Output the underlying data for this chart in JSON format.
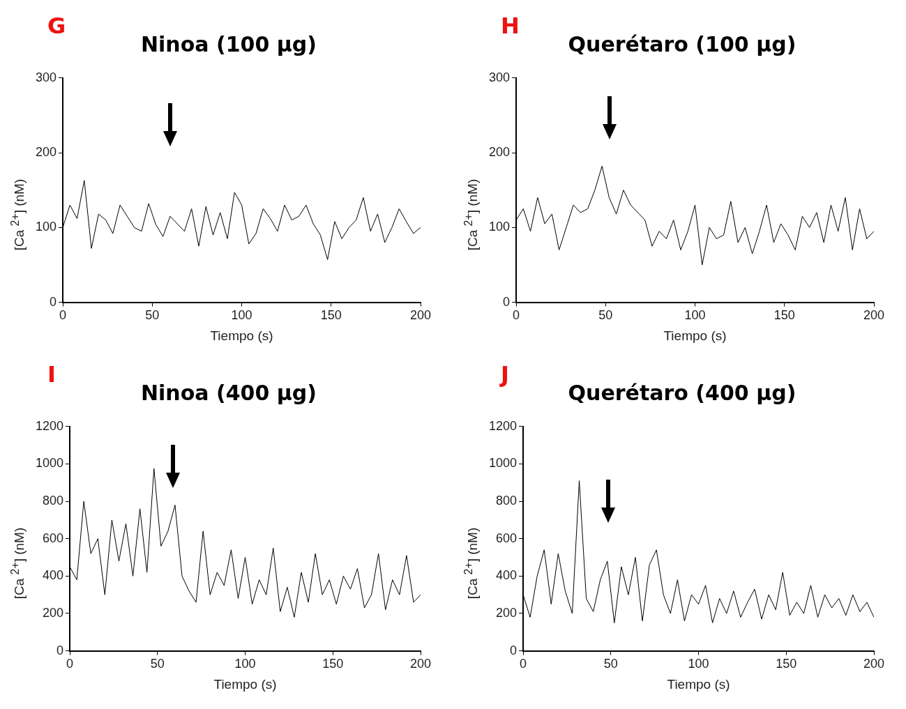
{
  "chart_data": [
    {
      "type": "line",
      "title": "Ninoa (100 µg)",
      "xlabel": "Tiempo (s)",
      "ylabel": "[Ca $^{2+}$] (nM)",
      "annotations": [
        "G"
      ],
      "xlim": [
        0,
        200
      ],
      "xticks": [
        0,
        50,
        100,
        150,
        200
      ],
      "ylim": [
        0,
        300
      ],
      "yticks": [
        0,
        100,
        200,
        300
      ],
      "color": "#000000",
      "x": [
        0,
        4,
        8,
        12,
        16,
        20,
        24,
        28,
        32,
        36,
        40,
        44,
        48,
        52,
        56,
        60,
        64,
        68,
        72,
        76,
        80,
        84,
        88,
        92,
        96,
        100,
        104,
        108,
        112,
        116,
        120,
        124,
        128,
        132,
        136,
        140,
        144,
        148,
        152,
        156,
        160,
        164,
        168,
        172,
        176,
        180,
        184,
        188,
        192,
        196,
        200
      ],
      "values": [
        100,
        130,
        112,
        163,
        72,
        118,
        110,
        92,
        130,
        115,
        100,
        95,
        132,
        104,
        88,
        115,
        105,
        95,
        125,
        75,
        128,
        90,
        120,
        85,
        147,
        130,
        78,
        92,
        125,
        112,
        95,
        130,
        110,
        115,
        130,
        105,
        90,
        57,
        108,
        85,
        100,
        110,
        140,
        95,
        118,
        80,
        100,
        125,
        108,
        92,
        100
      ]
    },
    {
      "type": "line",
      "title": "Querétaro (100 µg)",
      "xlabel": "Tiempo (s)",
      "ylabel": "[Ca $^{2+}$] (nM)",
      "annotations": [
        "H"
      ],
      "xlim": [
        0,
        200
      ],
      "xticks": [
        0,
        50,
        100,
        150,
        200
      ],
      "ylim": [
        0,
        300
      ],
      "yticks": [
        0,
        100,
        200,
        300
      ],
      "color": "#000000",
      "x": [
        0,
        4,
        8,
        12,
        16,
        20,
        24,
        28,
        32,
        36,
        40,
        44,
        48,
        52,
        56,
        60,
        64,
        68,
        72,
        76,
        80,
        84,
        88,
        92,
        96,
        100,
        104,
        108,
        112,
        116,
        120,
        124,
        128,
        132,
        136,
        140,
        144,
        148,
        152,
        156,
        160,
        164,
        168,
        172,
        176,
        180,
        184,
        188,
        192,
        196,
        200
      ],
      "values": [
        110,
        125,
        95,
        140,
        105,
        118,
        70,
        100,
        130,
        120,
        125,
        150,
        182,
        140,
        118,
        150,
        130,
        120,
        110,
        75,
        95,
        85,
        110,
        70,
        95,
        130,
        50,
        100,
        85,
        90,
        135,
        80,
        100,
        65,
        95,
        130,
        80,
        105,
        90,
        70,
        115,
        100,
        120,
        80,
        130,
        95,
        140,
        70,
        125,
        85,
        95
      ]
    },
    {
      "type": "line",
      "title": "Ninoa (400 µg)",
      "xlabel": "Tiempo (s)",
      "ylabel": "[Ca $^{2+}$] (nM)",
      "annotations": [
        "I"
      ],
      "xlim": [
        0,
        200
      ],
      "xticks": [
        0,
        50,
        100,
        150,
        200
      ],
      "ylim": [
        0,
        1200
      ],
      "yticks": [
        0,
        200,
        400,
        600,
        800,
        1000,
        1200
      ],
      "color": "#000000",
      "x": [
        0,
        4,
        8,
        12,
        16,
        20,
        24,
        28,
        32,
        36,
        40,
        44,
        48,
        52,
        56,
        60,
        64,
        68,
        72,
        76,
        80,
        84,
        88,
        92,
        96,
        100,
        104,
        108,
        112,
        116,
        120,
        124,
        128,
        132,
        136,
        140,
        144,
        148,
        152,
        156,
        160,
        164,
        168,
        172,
        176,
        180,
        184,
        188,
        192,
        196,
        200
      ],
      "values": [
        450,
        380,
        800,
        520,
        600,
        300,
        700,
        480,
        680,
        400,
        760,
        420,
        975,
        560,
        640,
        780,
        400,
        320,
        260,
        640,
        300,
        420,
        350,
        540,
        280,
        500,
        250,
        380,
        300,
        550,
        210,
        340,
        180,
        420,
        260,
        520,
        300,
        380,
        250,
        400,
        330,
        440,
        230,
        300,
        520,
        220,
        380,
        300,
        510,
        260,
        300
      ]
    },
    {
      "type": "line",
      "title": "Querétaro (400 µg)",
      "xlabel": "Tiempo (s)",
      "ylabel": "[Ca $^{2+}$] (nM)",
      "annotations": [
        "J"
      ],
      "xlim": [
        0,
        200
      ],
      "xticks": [
        0,
        50,
        100,
        150,
        200
      ],
      "ylim": [
        0,
        1200
      ],
      "yticks": [
        0,
        200,
        400,
        600,
        800,
        1000,
        1200
      ],
      "color": "#000000",
      "x": [
        0,
        4,
        8,
        12,
        16,
        20,
        24,
        28,
        32,
        36,
        40,
        44,
        48,
        52,
        56,
        60,
        64,
        68,
        72,
        76,
        80,
        84,
        88,
        92,
        96,
        100,
        104,
        108,
        112,
        116,
        120,
        124,
        128,
        132,
        136,
        140,
        144,
        148,
        152,
        156,
        160,
        164,
        168,
        172,
        176,
        180,
        184,
        188,
        192,
        196,
        200
      ],
      "values": [
        300,
        180,
        400,
        540,
        250,
        520,
        320,
        200,
        910,
        280,
        210,
        380,
        480,
        150,
        450,
        300,
        500,
        160,
        460,
        540,
        300,
        200,
        380,
        160,
        300,
        250,
        350,
        150,
        280,
        200,
        320,
        180,
        260,
        330,
        170,
        300,
        220,
        420,
        190,
        260,
        200,
        350,
        180,
        300,
        230,
        280,
        190,
        300,
        210,
        260,
        180
      ]
    }
  ]
}
